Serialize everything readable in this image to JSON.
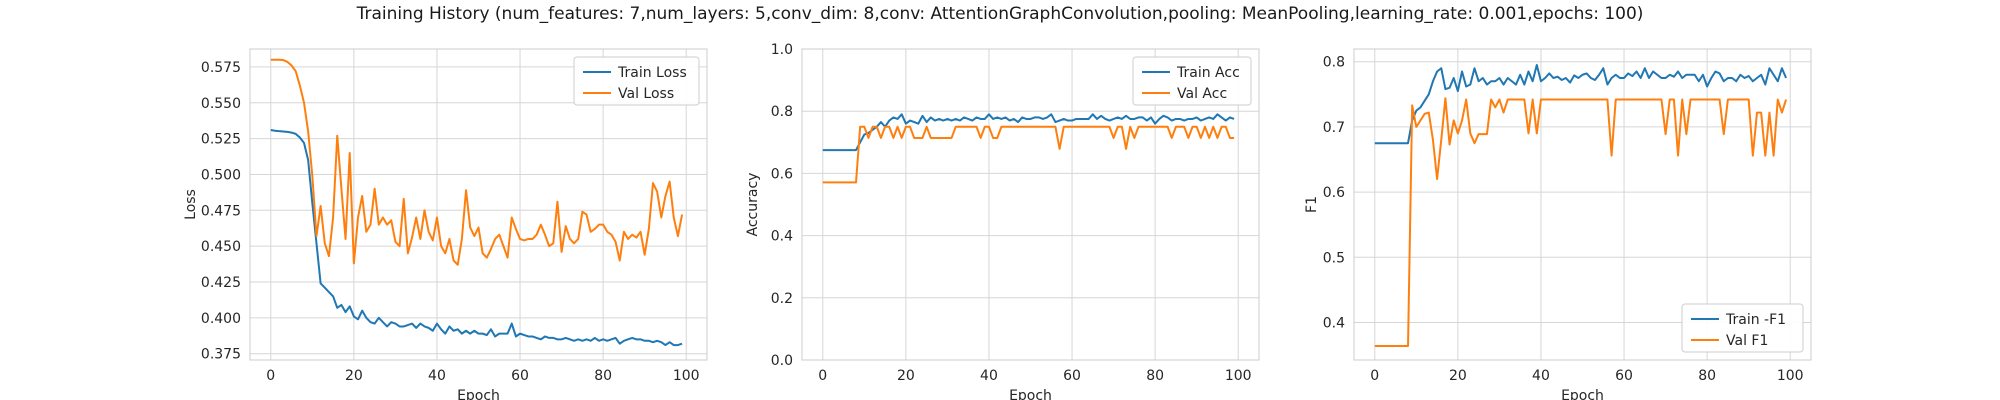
{
  "figure": {
    "title": "Training History (num_features: 7,num_layers: 5,conv_dim: 8,conv: AttentionGraphConvolution,pooling: MeanPooling,learning_rate: 0.001,epochs: 100)"
  },
  "chart_data": [
    {
      "type": "line",
      "xlabel": "Epoch",
      "ylabel": "Loss",
      "xlim": [
        -5,
        105
      ],
      "ylim": [
        0.3706,
        0.5875
      ],
      "xticks": [
        0,
        20,
        40,
        60,
        80,
        100
      ],
      "yticks": [
        0.375,
        0.4,
        0.425,
        0.45,
        0.475,
        0.5,
        0.525,
        0.55,
        0.575
      ],
      "ytick_labels": [
        "0.375",
        "0.400",
        "0.425",
        "0.450",
        "0.475",
        "0.500",
        "0.525",
        "0.550",
        "0.575"
      ],
      "grid": true,
      "legend": "upper-right",
      "series": [
        {
          "name": "Train Loss",
          "color": "#1f77b4",
          "values": [
            0.531,
            0.5305,
            0.5302,
            0.53,
            0.5297,
            0.5292,
            0.5283,
            0.5258,
            0.522,
            0.51,
            0.48,
            0.452,
            0.424,
            0.421,
            0.418,
            0.415,
            0.407,
            0.409,
            0.404,
            0.408,
            0.401,
            0.399,
            0.405,
            0.4,
            0.397,
            0.396,
            0.4,
            0.397,
            0.394,
            0.397,
            0.396,
            0.394,
            0.394,
            0.395,
            0.396,
            0.393,
            0.396,
            0.394,
            0.393,
            0.391,
            0.396,
            0.392,
            0.389,
            0.394,
            0.391,
            0.392,
            0.389,
            0.391,
            0.389,
            0.391,
            0.389,
            0.389,
            0.388,
            0.392,
            0.387,
            0.389,
            0.389,
            0.389,
            0.396,
            0.387,
            0.389,
            0.388,
            0.387,
            0.387,
            0.386,
            0.385,
            0.387,
            0.386,
            0.386,
            0.385,
            0.385,
            0.386,
            0.385,
            0.384,
            0.385,
            0.384,
            0.385,
            0.384,
            0.386,
            0.384,
            0.385,
            0.384,
            0.385,
            0.386,
            0.382,
            0.384,
            0.385,
            0.386,
            0.385,
            0.385,
            0.384,
            0.384,
            0.383,
            0.384,
            0.383,
            0.381,
            0.383,
            0.381,
            0.381,
            0.382
          ]
        },
        {
          "name": "Val Loss",
          "color": "#ff7f0e",
          "values": [
            0.58,
            0.58,
            0.58,
            0.5798,
            0.5785,
            0.576,
            0.572,
            0.562,
            0.55,
            0.53,
            0.499,
            0.457,
            0.478,
            0.452,
            0.443,
            0.47,
            0.527,
            0.49,
            0.455,
            0.515,
            0.438,
            0.47,
            0.485,
            0.46,
            0.465,
            0.49,
            0.465,
            0.47,
            0.465,
            0.468,
            0.453,
            0.45,
            0.483,
            0.445,
            0.456,
            0.47,
            0.455,
            0.475,
            0.46,
            0.454,
            0.47,
            0.45,
            0.445,
            0.455,
            0.44,
            0.437,
            0.455,
            0.489,
            0.463,
            0.457,
            0.463,
            0.445,
            0.442,
            0.448,
            0.455,
            0.458,
            0.45,
            0.442,
            0.47,
            0.462,
            0.455,
            0.454,
            0.455,
            0.455,
            0.458,
            0.465,
            0.458,
            0.45,
            0.452,
            0.481,
            0.446,
            0.464,
            0.455,
            0.452,
            0.455,
            0.474,
            0.472,
            0.46,
            0.462,
            0.465,
            0.465,
            0.46,
            0.458,
            0.453,
            0.44,
            0.46,
            0.455,
            0.458,
            0.456,
            0.46,
            0.444,
            0.462,
            0.494,
            0.488,
            0.47,
            0.485,
            0.495,
            0.47,
            0.457,
            0.472
          ]
        }
      ]
    },
    {
      "type": "line",
      "xlabel": "Epoch",
      "ylabel": "Accuracy",
      "xlim": [
        -5,
        105
      ],
      "ylim": [
        0,
        1
      ],
      "xticks": [
        0,
        20,
        40,
        60,
        80,
        100
      ],
      "yticks": [
        0,
        0.2,
        0.4,
        0.6,
        0.8,
        1.0
      ],
      "ytick_labels": [
        "0.0",
        "0.2",
        "0.4",
        "0.6",
        "0.8",
        "1.0"
      ],
      "grid": true,
      "legend": "upper-right",
      "series": [
        {
          "name": "Train Acc",
          "color": "#1f77b4",
          "values": [
            0.675,
            0.675,
            0.675,
            0.675,
            0.675,
            0.675,
            0.675,
            0.675,
            0.675,
            0.7,
            0.725,
            0.73,
            0.74,
            0.75,
            0.765,
            0.75,
            0.77,
            0.78,
            0.775,
            0.79,
            0.76,
            0.77,
            0.765,
            0.76,
            0.785,
            0.765,
            0.78,
            0.77,
            0.775,
            0.77,
            0.775,
            0.77,
            0.775,
            0.77,
            0.78,
            0.775,
            0.77,
            0.78,
            0.775,
            0.775,
            0.79,
            0.775,
            0.78,
            0.775,
            0.78,
            0.77,
            0.775,
            0.765,
            0.78,
            0.775,
            0.775,
            0.78,
            0.78,
            0.775,
            0.78,
            0.79,
            0.765,
            0.77,
            0.775,
            0.77,
            0.77,
            0.775,
            0.775,
            0.775,
            0.775,
            0.79,
            0.775,
            0.785,
            0.775,
            0.77,
            0.775,
            0.78,
            0.775,
            0.785,
            0.775,
            0.775,
            0.78,
            0.78,
            0.77,
            0.78,
            0.76,
            0.775,
            0.785,
            0.78,
            0.77,
            0.775,
            0.775,
            0.77,
            0.775,
            0.775,
            0.78,
            0.77,
            0.775,
            0.78,
            0.775,
            0.79,
            0.78,
            0.77,
            0.78,
            0.775
          ]
        },
        {
          "name": "Val Acc",
          "color": "#ff7f0e",
          "values": [
            0.571,
            0.571,
            0.571,
            0.571,
            0.571,
            0.571,
            0.571,
            0.571,
            0.571,
            0.75,
            0.75,
            0.714,
            0.75,
            0.75,
            0.714,
            0.75,
            0.75,
            0.714,
            0.75,
            0.714,
            0.75,
            0.75,
            0.714,
            0.714,
            0.714,
            0.75,
            0.714,
            0.714,
            0.714,
            0.714,
            0.714,
            0.714,
            0.75,
            0.75,
            0.75,
            0.75,
            0.75,
            0.75,
            0.714,
            0.75,
            0.75,
            0.714,
            0.714,
            0.75,
            0.75,
            0.75,
            0.75,
            0.75,
            0.75,
            0.75,
            0.75,
            0.75,
            0.75,
            0.75,
            0.75,
            0.75,
            0.75,
            0.679,
            0.75,
            0.75,
            0.75,
            0.75,
            0.75,
            0.75,
            0.75,
            0.75,
            0.75,
            0.75,
            0.75,
            0.75,
            0.714,
            0.75,
            0.75,
            0.679,
            0.75,
            0.714,
            0.75,
            0.75,
            0.75,
            0.75,
            0.75,
            0.75,
            0.75,
            0.75,
            0.714,
            0.75,
            0.75,
            0.75,
            0.714,
            0.75,
            0.75,
            0.714,
            0.75,
            0.714,
            0.75,
            0.714,
            0.75,
            0.75,
            0.714,
            0.714
          ]
        }
      ]
    },
    {
      "type": "line",
      "xlabel": "Epoch",
      "ylabel": "F1",
      "xlim": [
        -5,
        105
      ],
      "ylim": [
        0.3425,
        0.8195
      ],
      "xticks": [
        0,
        20,
        40,
        60,
        80,
        100
      ],
      "yticks": [
        0.4,
        0.5,
        0.6,
        0.7,
        0.8
      ],
      "ytick_labels": [
        "0.4",
        "0.5",
        "0.6",
        "0.7",
        "0.8"
      ],
      "grid": true,
      "legend": "lower-right",
      "series": [
        {
          "name": "Train -F1",
          "color": "#1f77b4",
          "values": [
            0.675,
            0.675,
            0.675,
            0.675,
            0.675,
            0.675,
            0.675,
            0.675,
            0.675,
            0.71,
            0.725,
            0.73,
            0.74,
            0.75,
            0.77,
            0.785,
            0.79,
            0.758,
            0.76,
            0.775,
            0.755,
            0.785,
            0.762,
            0.765,
            0.79,
            0.77,
            0.775,
            0.765,
            0.77,
            0.77,
            0.775,
            0.765,
            0.775,
            0.77,
            0.765,
            0.78,
            0.765,
            0.785,
            0.77,
            0.795,
            0.77,
            0.775,
            0.782,
            0.775,
            0.777,
            0.772,
            0.775,
            0.768,
            0.779,
            0.775,
            0.78,
            0.782,
            0.775,
            0.772,
            0.78,
            0.79,
            0.765,
            0.775,
            0.78,
            0.775,
            0.775,
            0.782,
            0.778,
            0.785,
            0.775,
            0.79,
            0.775,
            0.785,
            0.78,
            0.775,
            0.775,
            0.78,
            0.777,
            0.785,
            0.775,
            0.78,
            0.78,
            0.78,
            0.77,
            0.78,
            0.762,
            0.775,
            0.785,
            0.782,
            0.77,
            0.775,
            0.775,
            0.77,
            0.78,
            0.775,
            0.778,
            0.77,
            0.775,
            0.78,
            0.765,
            0.79,
            0.78,
            0.77,
            0.79,
            0.775
          ]
        },
        {
          "name": "Val F1",
          "color": "#ff7f0e",
          "values": [
            0.364,
            0.364,
            0.364,
            0.364,
            0.364,
            0.364,
            0.364,
            0.364,
            0.364,
            0.733,
            0.7,
            0.71,
            0.72,
            0.722,
            0.68,
            0.62,
            0.68,
            0.744,
            0.673,
            0.71,
            0.69,
            0.71,
            0.742,
            0.69,
            0.675,
            0.689,
            0.689,
            0.689,
            0.742,
            0.73,
            0.742,
            0.722,
            0.742,
            0.742,
            0.742,
            0.742,
            0.742,
            0.69,
            0.742,
            0.69,
            0.742,
            0.742,
            0.742,
            0.742,
            0.742,
            0.742,
            0.742,
            0.742,
            0.742,
            0.742,
            0.742,
            0.742,
            0.742,
            0.742,
            0.742,
            0.742,
            0.742,
            0.656,
            0.742,
            0.742,
            0.742,
            0.742,
            0.742,
            0.742,
            0.742,
            0.742,
            0.742,
            0.742,
            0.742,
            0.742,
            0.689,
            0.742,
            0.742,
            0.656,
            0.742,
            0.689,
            0.742,
            0.742,
            0.742,
            0.742,
            0.742,
            0.742,
            0.742,
            0.742,
            0.689,
            0.742,
            0.742,
            0.742,
            0.742,
            0.742,
            0.742,
            0.656,
            0.722,
            0.722,
            0.656,
            0.722,
            0.656,
            0.742,
            0.722,
            0.742
          ]
        }
      ]
    }
  ]
}
